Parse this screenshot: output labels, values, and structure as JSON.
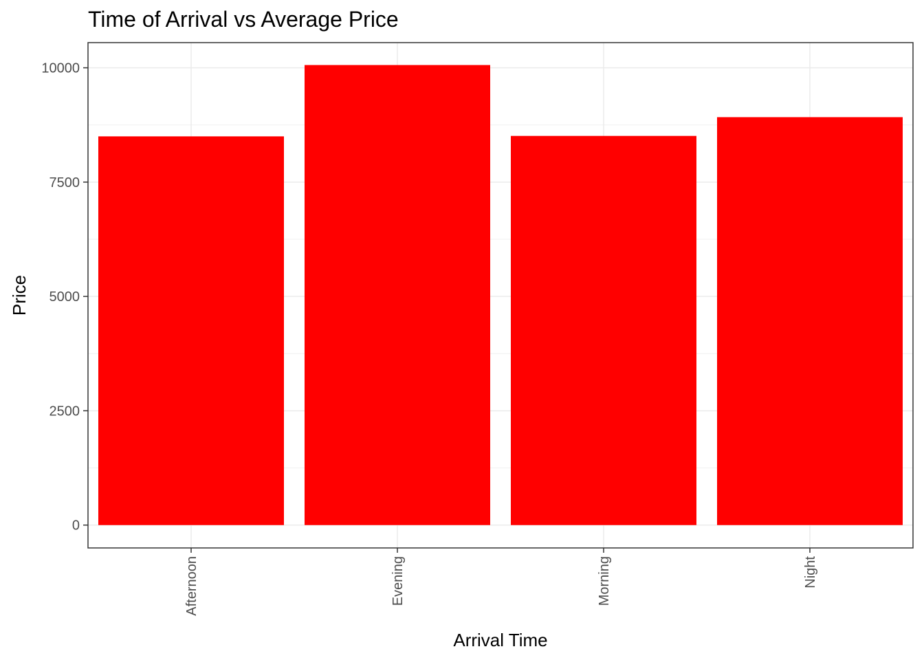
{
  "chart_data": {
    "type": "bar",
    "title": "Time of Arrival vs Average Price",
    "xlabel": "Arrival Time",
    "ylabel": "Price",
    "categories": [
      "Afternoon",
      "Evening",
      "Morning",
      "Night"
    ],
    "values": [
      8500,
      10060,
      8510,
      8920
    ],
    "ylim": [
      -500,
      10550
    ],
    "yticks": [
      0,
      2500,
      5000,
      7500,
      10000
    ],
    "ytick_labels": [
      "0",
      "2500",
      "5000",
      "7500",
      "10000"
    ],
    "bar_color": "#ff0000",
    "grid": true,
    "legend": "none"
  }
}
